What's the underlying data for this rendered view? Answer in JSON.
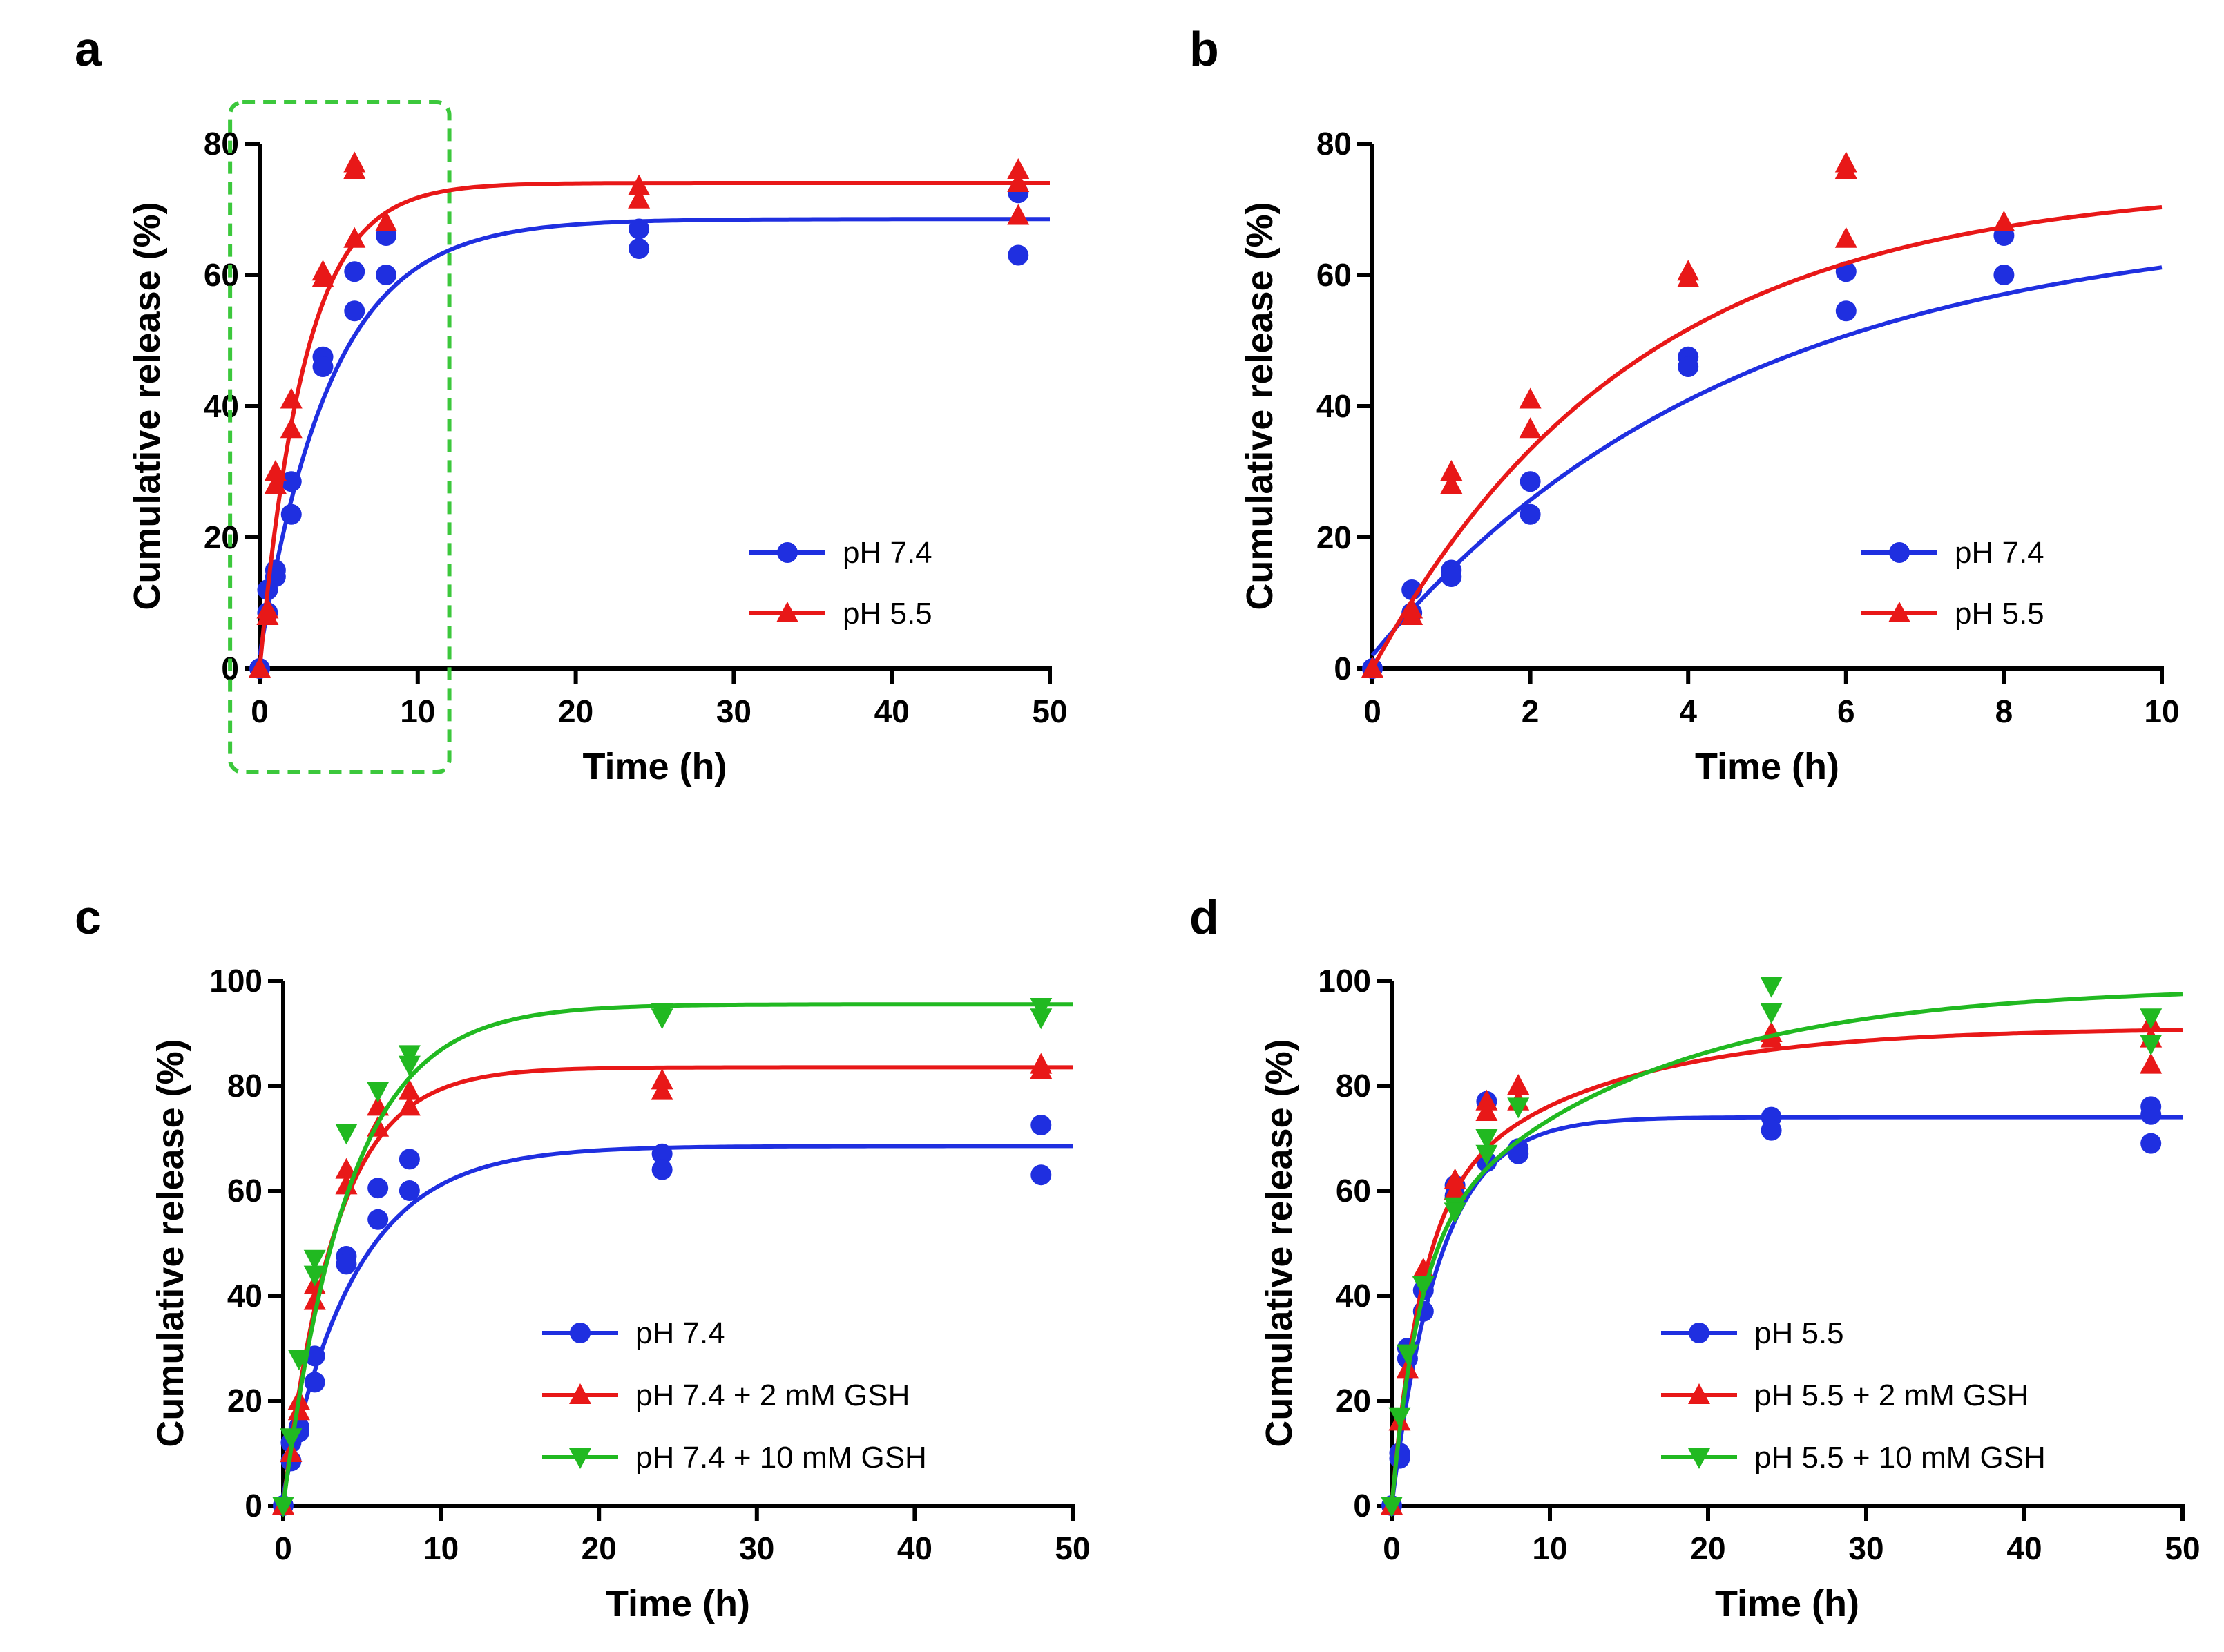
{
  "figure": {
    "panels": [
      "a",
      "b",
      "c",
      "d"
    ]
  },
  "chart_data": [
    {
      "panel": "a",
      "type": "scatter",
      "title": "",
      "xlabel": "Time (h)",
      "ylabel": "Cumulative release (%)",
      "xlim": [
        0,
        50
      ],
      "ylim": [
        0,
        80
      ],
      "xticks": [
        0,
        10,
        20,
        30,
        40,
        50
      ],
      "yticks": [
        0,
        20,
        40,
        60,
        80
      ],
      "legend_position": "center-right",
      "highlight_box": {
        "x_range": [
          -1,
          12
        ],
        "note": "dashed green zoom region"
      },
      "series": [
        {
          "name": "pH 7.4",
          "color": "#1f2fe0",
          "marker": "circle",
          "points": [
            [
              0,
              0
            ],
            [
              0.5,
              12
            ],
            [
              0.5,
              8.5
            ],
            [
              1,
              15
            ],
            [
              1,
              14
            ],
            [
              2,
              28.5
            ],
            [
              2,
              23.5
            ],
            [
              4,
              47.5
            ],
            [
              4,
              46
            ],
            [
              6,
              60.5
            ],
            [
              6,
              54.5
            ],
            [
              8,
              66
            ],
            [
              8,
              60
            ],
            [
              24,
              67
            ],
            [
              24,
              64
            ],
            [
              48,
              72.5
            ],
            [
              48,
              63
            ]
          ],
          "fit": {
            "model": "exponential",
            "plateau": 68.5,
            "k": 0.22,
            "y0": 2
          }
        },
        {
          "name": "pH 5.5",
          "color": "#e81818",
          "marker": "triangle-up",
          "points": [
            [
              0,
              0
            ],
            [
              0.5,
              9
            ],
            [
              0.5,
              8
            ],
            [
              1,
              30
            ],
            [
              1,
              28
            ],
            [
              2,
              41
            ],
            [
              2,
              36.5
            ],
            [
              4,
              60.5
            ],
            [
              4,
              59.5
            ],
            [
              6,
              77
            ],
            [
              6,
              76
            ],
            [
              6,
              65.5
            ],
            [
              8,
              68
            ],
            [
              24,
              73.5
            ],
            [
              24,
              71.5
            ],
            [
              48,
              76
            ],
            [
              48,
              74
            ],
            [
              48,
              69
            ]
          ],
          "fit": {
            "model": "exponential",
            "plateau": 74,
            "k": 0.35,
            "y0": 0
          }
        }
      ]
    },
    {
      "panel": "b",
      "type": "scatter",
      "title": "",
      "xlabel": "Time (h)",
      "ylabel": "Cumulative release (%)",
      "xlim": [
        0,
        10
      ],
      "ylim": [
        0,
        80
      ],
      "xticks": [
        0,
        2,
        4,
        6,
        8,
        10
      ],
      "yticks": [
        0,
        20,
        40,
        60,
        80
      ],
      "legend_position": "bottom-right",
      "series": [
        {
          "name": "pH 7.4",
          "color": "#1f2fe0",
          "marker": "circle",
          "points": [
            [
              0,
              0
            ],
            [
              0.5,
              12
            ],
            [
              0.5,
              8.5
            ],
            [
              1,
              15
            ],
            [
              1,
              14
            ],
            [
              2,
              28.5
            ],
            [
              2,
              23.5
            ],
            [
              4,
              47.5
            ],
            [
              4,
              46
            ],
            [
              6,
              60.5
            ],
            [
              6,
              54.5
            ],
            [
              8,
              66
            ],
            [
              8,
              60
            ]
          ],
          "fit": {
            "model": "exponential",
            "plateau": 68.5,
            "k": 0.22,
            "y0": 2
          }
        },
        {
          "name": "pH 5.5",
          "color": "#e81818",
          "marker": "triangle-up",
          "points": [
            [
              0,
              0
            ],
            [
              0.5,
              9
            ],
            [
              0.5,
              8
            ],
            [
              1,
              30
            ],
            [
              1,
              28
            ],
            [
              2,
              41
            ],
            [
              2,
              36.5
            ],
            [
              4,
              60.5
            ],
            [
              4,
              59.5
            ],
            [
              6,
              77
            ],
            [
              6,
              76
            ],
            [
              6,
              65.5
            ],
            [
              8,
              68
            ]
          ],
          "fit": {
            "model": "exponential",
            "plateau": 74,
            "k": 0.3,
            "y0": 0
          }
        }
      ]
    },
    {
      "panel": "c",
      "type": "scatter",
      "title": "",
      "xlabel": "Time (h)",
      "ylabel": "Cumulative release (%)",
      "xlim": [
        0,
        50
      ],
      "ylim": [
        0,
        100
      ],
      "xticks": [
        0,
        10,
        20,
        30,
        40,
        50
      ],
      "yticks": [
        0,
        20,
        40,
        60,
        80,
        100
      ],
      "legend_position": "bottom-right",
      "series": [
        {
          "name": "pH 7.4",
          "color": "#1f2fe0",
          "marker": "circle",
          "points": [
            [
              0,
              0
            ],
            [
              0.5,
              12
            ],
            [
              0.5,
              8.5
            ],
            [
              1,
              15
            ],
            [
              1,
              14
            ],
            [
              2,
              28.5
            ],
            [
              2,
              23.5
            ],
            [
              4,
              47.5
            ],
            [
              4,
              46
            ],
            [
              6,
              60.5
            ],
            [
              6,
              54.5
            ],
            [
              8,
              66
            ],
            [
              8,
              60
            ],
            [
              24,
              67
            ],
            [
              24,
              64
            ],
            [
              48,
              72.5
            ],
            [
              48,
              63
            ]
          ],
          "fit": {
            "model": "exponential",
            "plateau": 68.5,
            "k": 0.22,
            "y0": 2
          }
        },
        {
          "name": "pH 7.4 + 2 mM GSH",
          "color": "#e81818",
          "marker": "triangle-up",
          "points": [
            [
              0,
              0
            ],
            [
              0.5,
              10
            ],
            [
              1,
              20
            ],
            [
              1,
              18
            ],
            [
              2,
              42
            ],
            [
              2,
              39
            ],
            [
              4,
              64
            ],
            [
              4,
              61
            ],
            [
              6,
              76
            ],
            [
              6,
              72
            ],
            [
              8,
              79
            ],
            [
              8,
              76
            ],
            [
              24,
              81
            ],
            [
              24,
              79
            ],
            [
              48,
              84
            ],
            [
              48,
              83
            ]
          ],
          "fit": {
            "model": "exponential",
            "plateau": 83.5,
            "k": 0.3,
            "y0": 0
          }
        },
        {
          "name": "pH 7.4 + 10 mM GSH",
          "color": "#21b921",
          "marker": "triangle-down",
          "points": [
            [
              0,
              0
            ],
            [
              0.5,
              13
            ],
            [
              1,
              28
            ],
            [
              2,
              47
            ],
            [
              2,
              44
            ],
            [
              4,
              71
            ],
            [
              6,
              79
            ],
            [
              8,
              86
            ],
            [
              8,
              84
            ],
            [
              24,
              94
            ],
            [
              24,
              93
            ],
            [
              48,
              95
            ],
            [
              48,
              93
            ]
          ],
          "fit": {
            "model": "exponential",
            "plateau": 95.5,
            "k": 0.24,
            "y0": 0
          }
        }
      ]
    },
    {
      "panel": "d",
      "type": "scatter",
      "title": "",
      "xlabel": "Time (h)",
      "ylabel": "Cumulative release (%)",
      "xlim": [
        0,
        50
      ],
      "ylim": [
        0,
        100
      ],
      "xticks": [
        0,
        10,
        20,
        30,
        40,
        50
      ],
      "yticks": [
        0,
        20,
        40,
        60,
        80,
        100
      ],
      "legend_position": "bottom-right",
      "series": [
        {
          "name": "pH 5.5",
          "color": "#1f2fe0",
          "marker": "circle",
          "points": [
            [
              0,
              0
            ],
            [
              0.5,
              10
            ],
            [
              0.5,
              9
            ],
            [
              1,
              30
            ],
            [
              1,
              28
            ],
            [
              2,
              41
            ],
            [
              2,
              37
            ],
            [
              4,
              61
            ],
            [
              4,
              59
            ],
            [
              6,
              77
            ],
            [
              6,
              65.5
            ],
            [
              8,
              68
            ],
            [
              8,
              67
            ],
            [
              24,
              74
            ],
            [
              24,
              71.5
            ],
            [
              48,
              76
            ],
            [
              48,
              74.5
            ],
            [
              48,
              69
            ]
          ],
          "fit": {
            "model": "exponential",
            "plateau": 74,
            "k": 0.33,
            "y0": 0
          }
        },
        {
          "name": "pH 5.5 + 2 mM GSH",
          "color": "#e81818",
          "marker": "triangle-up",
          "points": [
            [
              0,
              0
            ],
            [
              0.5,
              16
            ],
            [
              1,
              26
            ],
            [
              2,
              45
            ],
            [
              4,
              62
            ],
            [
              4,
              60
            ],
            [
              6,
              77
            ],
            [
              6,
              75
            ],
            [
              8,
              80
            ],
            [
              8,
              77
            ],
            [
              24,
              90
            ],
            [
              24,
              89
            ],
            [
              48,
              92
            ],
            [
              48,
              89
            ],
            [
              48,
              84
            ]
          ],
          "fit": {
            "model": "biexponential",
            "a1": 55,
            "k1": 0.55,
            "a2": 36,
            "k2": 0.09
          }
        },
        {
          "name": "pH 5.5 + 10 mM GSH",
          "color": "#21b921",
          "marker": "triangle-down",
          "points": [
            [
              0,
              0
            ],
            [
              0.5,
              17
            ],
            [
              1,
              29
            ],
            [
              2,
              42
            ],
            [
              4,
              57
            ],
            [
              4,
              56
            ],
            [
              6,
              70
            ],
            [
              6,
              67
            ],
            [
              8,
              76
            ],
            [
              24,
              99
            ],
            [
              24,
              94
            ],
            [
              48,
              93
            ],
            [
              48,
              88
            ]
          ],
          "fit": {
            "model": "biexponential",
            "a1": 48,
            "k1": 0.6,
            "a2": 51,
            "k2": 0.07
          }
        }
      ]
    }
  ]
}
